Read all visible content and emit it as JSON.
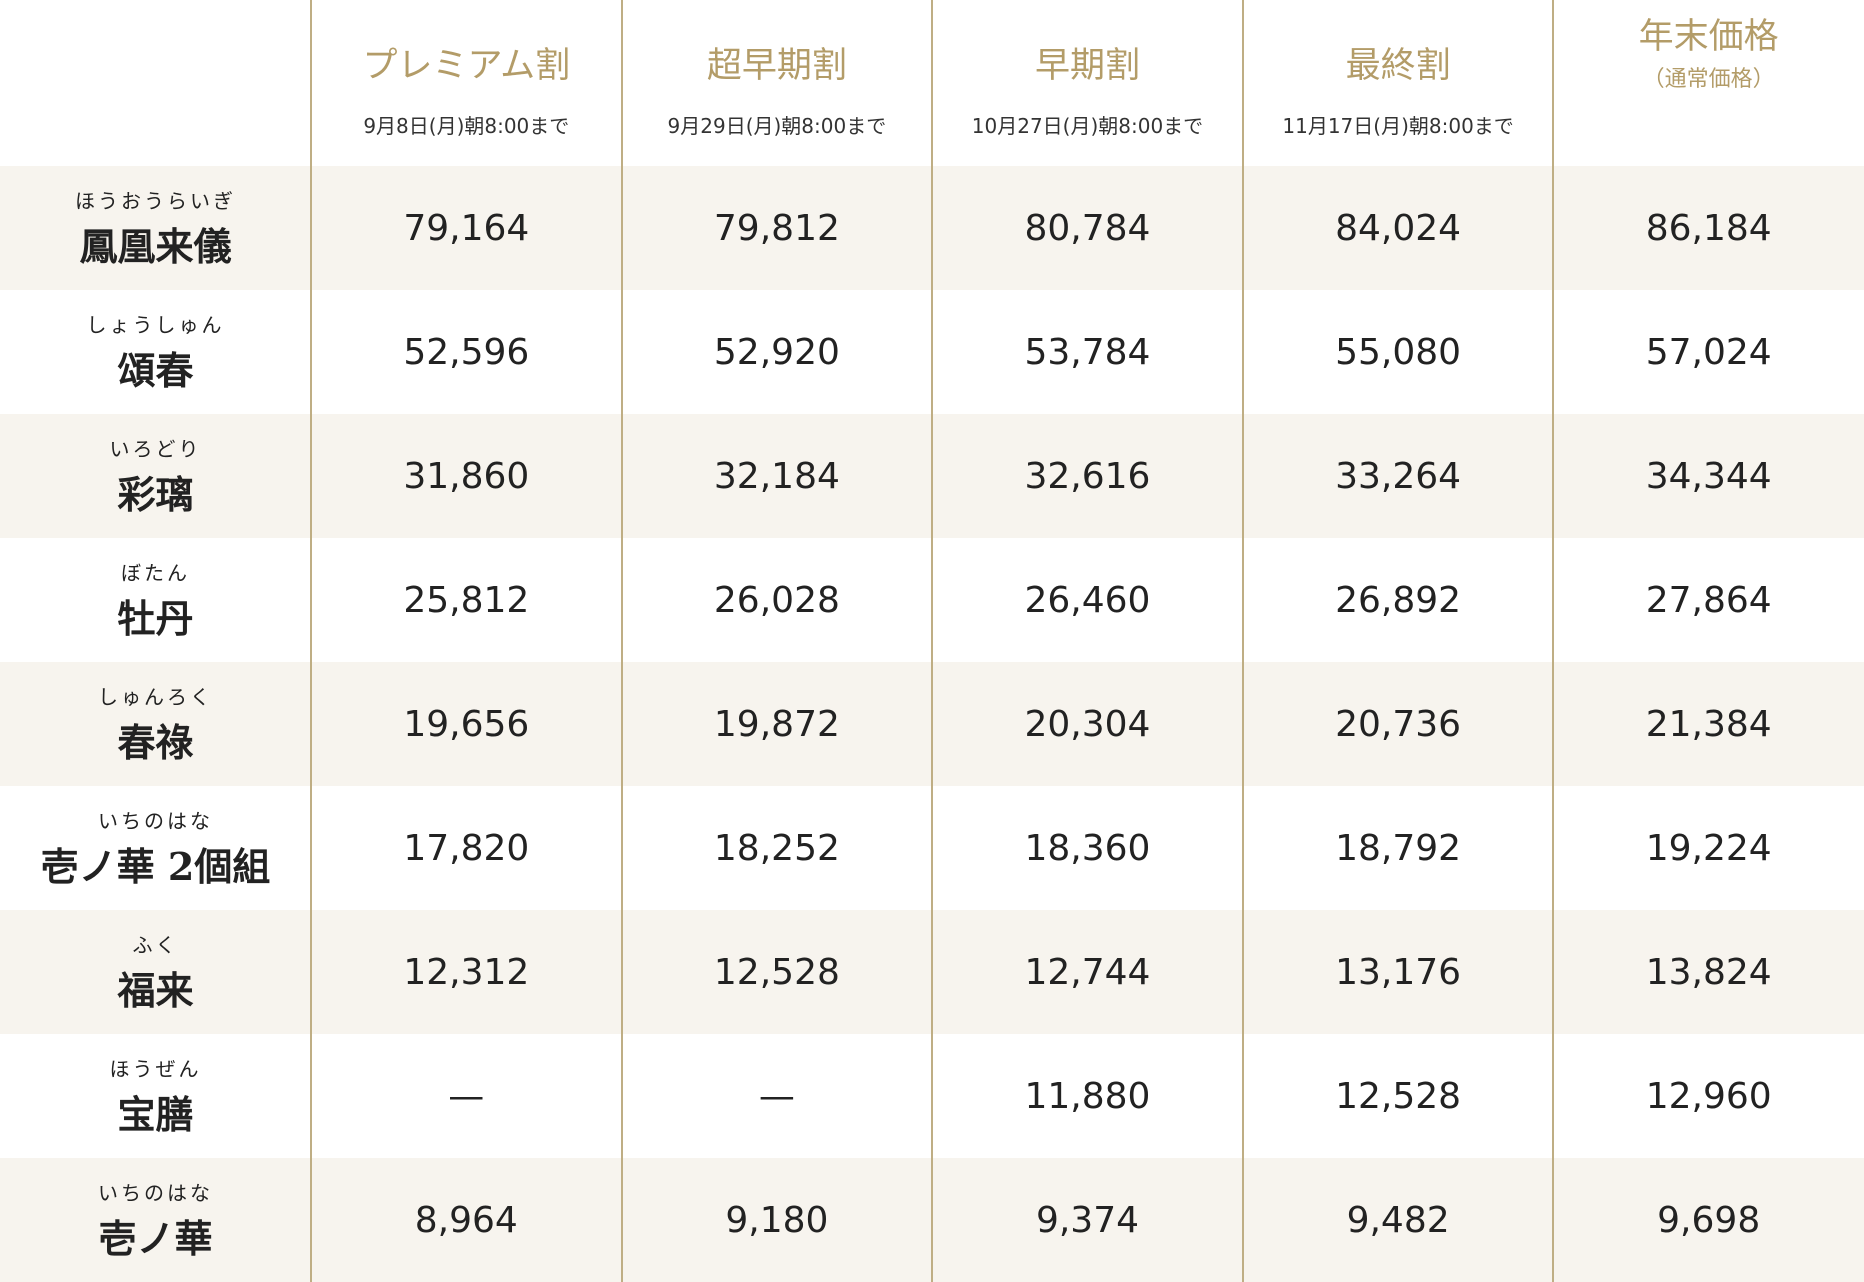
{
  "header": {
    "columns": [
      {
        "title": "プレミアム割",
        "note": "9月8日(月)朝8:00まで"
      },
      {
        "title": "超早期割",
        "note": "9月29日(月)朝8:00まで"
      },
      {
        "title": "早期割",
        "note": "10月27日(月)朝8:00まで"
      },
      {
        "title": "最終割",
        "note": "11月17日(月)朝8:00まで"
      },
      {
        "title": "年末価格",
        "note": "（通常価格）"
      }
    ]
  },
  "table": {
    "rows": [
      {
        "ruby": "ほうおうらいぎ",
        "name": "鳳凰来儀",
        "prices": [
          "79,164",
          "79,812",
          "80,784",
          "84,024",
          "86,184"
        ]
      },
      {
        "ruby": "しょうしゅん",
        "name": "頌春",
        "prices": [
          "52,596",
          "52,920",
          "53,784",
          "55,080",
          "57,024"
        ]
      },
      {
        "ruby": "いろどり",
        "name": "彩璃",
        "prices": [
          "31,860",
          "32,184",
          "32,616",
          "33,264",
          "34,344"
        ]
      },
      {
        "ruby": "ぼたん",
        "name": "牡丹",
        "prices": [
          "25,812",
          "26,028",
          "26,460",
          "26,892",
          "27,864"
        ]
      },
      {
        "ruby": "しゅんろく",
        "name": "春祿",
        "prices": [
          "19,656",
          "19,872",
          "20,304",
          "20,736",
          "21,384"
        ]
      },
      {
        "ruby": "いちのはな",
        "name": "壱ノ華 2個組",
        "prices": [
          "17,820",
          "18,252",
          "18,360",
          "18,792",
          "19,224"
        ]
      },
      {
        "ruby": "ふく",
        "name": "福来",
        "prices": [
          "12,312",
          "12,528",
          "12,744",
          "13,176",
          "13,824"
        ]
      },
      {
        "ruby": "ほうぜん",
        "name": "宝膳",
        "prices": [
          "—",
          "—",
          "11,880",
          "12,528",
          "12,960"
        ]
      },
      {
        "ruby": "いちのはな",
        "name": "壱ノ華",
        "prices": [
          "8,964",
          "9,180",
          "9,374",
          "9,482",
          "9,698"
        ]
      }
    ]
  }
}
